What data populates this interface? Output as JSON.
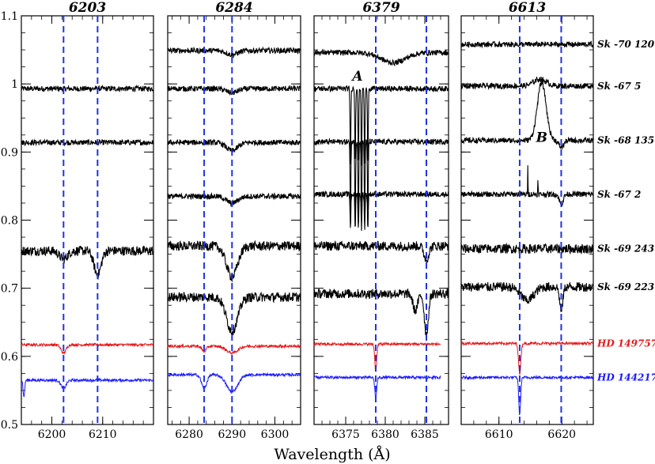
{
  "chart_data": {
    "type": "line",
    "xlabel": "Wavelength (Å)",
    "ylim": [
      0.5,
      1.1
    ],
    "y_ticks": [
      0.5,
      0.6,
      0.7,
      0.8,
      0.9,
      1,
      1.1
    ],
    "y_tick_labels": [
      "0.5",
      "0.6",
      "0.7",
      "0.8",
      "0.9",
      "1",
      "1.1"
    ],
    "colors": {
      "stars": "#000000",
      "ref_red": "#e41a1c",
      "ref_blue": "#1a1aff",
      "marker": "#1f33e6"
    },
    "panels": [
      {
        "title": "6203",
        "xlim": [
          6194,
          6220
        ],
        "ticks": [
          6200,
          6210
        ],
        "tick_labels": [
          "6200",
          "6210"
        ],
        "markers": [
          6202.3,
          6209
        ]
      },
      {
        "title": "6284",
        "xlim": [
          6275,
          6306
        ],
        "ticks": [
          6280,
          6290,
          6300
        ],
        "tick_labels": [
          "6280",
          "6290",
          "6300"
        ],
        "markers": [
          6283.5,
          6290
        ]
      },
      {
        "title": "6379",
        "xlim": [
          6371,
          6388
        ],
        "ticks": [
          6375,
          6380,
          6385
        ],
        "tick_labels": [
          "6375",
          "6380",
          "6385"
        ],
        "markers": [
          6378.8,
          6385.2
        ]
      },
      {
        "title": "6613",
        "xlim": [
          6604,
          6625
        ],
        "ticks": [
          6610,
          6620
        ],
        "tick_labels": [
          "6610",
          "6620"
        ],
        "markers": [
          6613.3,
          6619.9
        ]
      }
    ],
    "stars": [
      {
        "name": "Sk -70 120",
        "color": "#000000",
        "baseline": [
          null,
          1.049,
          1.046,
          1.058
        ]
      },
      {
        "name": "Sk -67 5",
        "color": "#000000",
        "baseline": [
          0.993,
          0.993,
          0.993,
          0.997
        ]
      },
      {
        "name": "Sk -68 135",
        "color": "#000000",
        "baseline": [
          0.914,
          0.914,
          0.915,
          0.917
        ]
      },
      {
        "name": "Sk -67 2",
        "color": "#000000",
        "baseline": [
          null,
          0.835,
          0.838,
          0.838
        ]
      },
      {
        "name": "Sk -69 243",
        "color": "#000000",
        "baseline": [
          0.755,
          0.762,
          0.762,
          0.758
        ]
      },
      {
        "name": "Sk -69 223",
        "color": "#000000",
        "baseline": [
          null,
          0.687,
          0.692,
          0.702
        ]
      },
      {
        "name": "HD 149757",
        "color": "#e41a1c",
        "baseline": [
          0.617,
          0.615,
          0.618,
          0.619
        ]
      },
      {
        "name": "HD 144217",
        "color": "#1a1aff",
        "baseline": [
          0.565,
          0.573,
          0.569,
          0.569
        ]
      }
    ],
    "annotations": [
      {
        "text": "A",
        "panel": 2,
        "x": 6376.5,
        "y": 1.005
      },
      {
        "text": "B",
        "panel": 3,
        "x": 6616.8,
        "y": 0.915
      }
    ]
  }
}
